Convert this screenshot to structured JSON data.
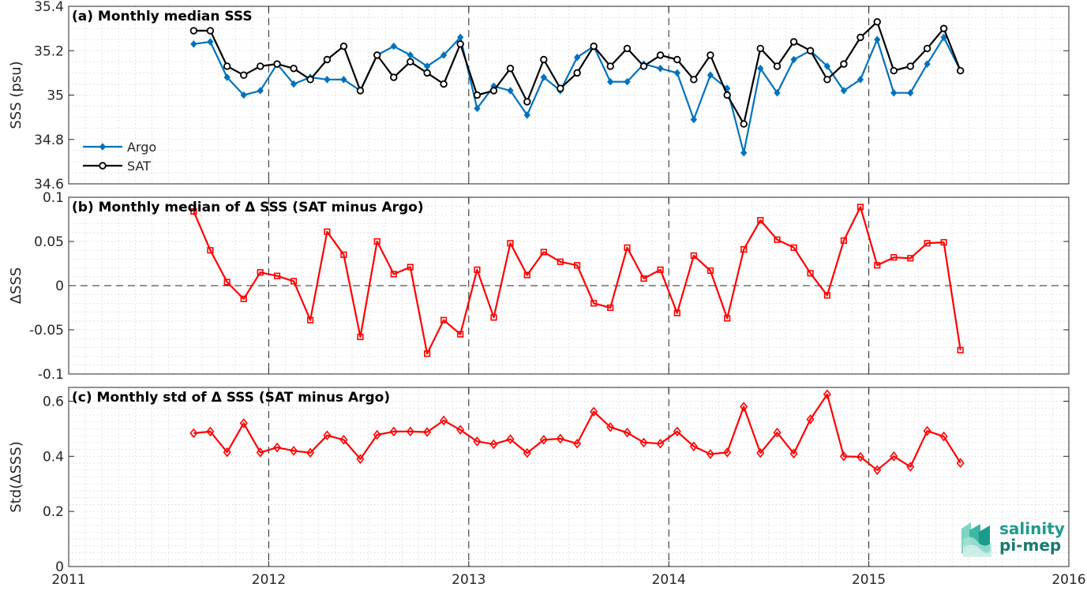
{
  "chart_data": [
    {
      "type": "line",
      "title": "(a) Monthly median SSS",
      "xlabel": "",
      "ylabel": "SSS (psu)",
      "xlim": [
        2011,
        2016
      ],
      "ylim": [
        34.6,
        35.4
      ],
      "xticks": [
        "2011",
        "2012",
        "2013",
        "2014",
        "2015",
        "2016"
      ],
      "yticks": [
        "34.6",
        "34.8",
        "35",
        "35.2",
        "35.4"
      ],
      "grid": "dotted minor grid, dashed year lines",
      "legend": "bottom-left",
      "x": [
        2011.625,
        2011.708,
        2011.792,
        2011.875,
        2011.958,
        2012.042,
        2012.125,
        2012.208,
        2012.292,
        2012.375,
        2012.458,
        2012.542,
        2012.625,
        2012.708,
        2012.792,
        2012.875,
        2012.958,
        2013.042,
        2013.125,
        2013.208,
        2013.292,
        2013.375,
        2013.458,
        2013.542,
        2013.625,
        2013.708,
        2013.792,
        2013.875,
        2013.958,
        2014.042,
        2014.125,
        2014.208,
        2014.292,
        2014.375,
        2014.458,
        2014.542,
        2014.625,
        2014.708,
        2014.792,
        2014.875,
        2014.958,
        2015.042,
        2015.125,
        2015.208,
        2015.292,
        2015.375,
        2015.458
      ],
      "series": [
        {
          "name": "Argo",
          "color": "#0072bd",
          "marker": "diamond",
          "values": [
            35.23,
            35.24,
            35.08,
            35.0,
            35.02,
            35.14,
            35.05,
            35.08,
            35.07,
            35.07,
            35.02,
            35.18,
            35.22,
            35.18,
            35.13,
            35.18,
            35.26,
            34.94,
            35.04,
            35.02,
            34.91,
            35.08,
            35.02,
            35.17,
            35.22,
            35.06,
            35.06,
            35.14,
            35.12,
            35.1,
            34.89,
            35.09,
            35.03,
            34.74,
            35.12,
            35.01,
            35.16,
            35.2,
            35.13,
            35.02,
            35.07,
            35.25,
            35.01,
            35.01,
            35.14,
            35.26,
            35.11
          ]
        },
        {
          "name": "SAT",
          "color": "#000000",
          "marker": "circle",
          "values": [
            35.29,
            35.29,
            35.13,
            35.09,
            35.13,
            35.14,
            35.12,
            35.07,
            35.16,
            35.22,
            35.02,
            35.18,
            35.08,
            35.15,
            35.1,
            35.05,
            35.23,
            35.0,
            35.02,
            35.12,
            34.97,
            35.16,
            35.03,
            35.1,
            35.22,
            35.13,
            35.21,
            35.13,
            35.18,
            35.16,
            35.07,
            35.18,
            35.0,
            34.87,
            35.21,
            35.13,
            35.24,
            35.2,
            35.07,
            35.14,
            35.26,
            35.33,
            35.11,
            35.13,
            35.21,
            35.3,
            35.11
          ]
        }
      ]
    },
    {
      "type": "line",
      "title": "(b) Monthly median of Δ SSS (SAT minus Argo)",
      "xlabel": "",
      "ylabel": "ΔSSS",
      "xlim": [
        2011,
        2016
      ],
      "ylim": [
        -0.1,
        0.1
      ],
      "xticks": [
        "2011",
        "2012",
        "2013",
        "2014",
        "2015",
        "2016"
      ],
      "yticks": [
        "-0.1",
        "-0.05",
        "0",
        "0.05",
        "0.1"
      ],
      "grid": "dotted minor grid, dashed year lines, dashed zero line",
      "legend": "none",
      "x": [
        2011.625,
        2011.708,
        2011.792,
        2011.875,
        2011.958,
        2012.042,
        2012.125,
        2012.208,
        2012.292,
        2012.375,
        2012.458,
        2012.542,
        2012.625,
        2012.708,
        2012.792,
        2012.875,
        2012.958,
        2013.042,
        2013.125,
        2013.208,
        2013.292,
        2013.375,
        2013.458,
        2013.542,
        2013.625,
        2013.708,
        2013.792,
        2013.875,
        2013.958,
        2014.042,
        2014.125,
        2014.208,
        2014.292,
        2014.375,
        2014.458,
        2014.542,
        2014.625,
        2014.708,
        2014.792,
        2014.875,
        2014.958,
        2015.042,
        2015.125,
        2015.208,
        2015.292,
        2015.375,
        2015.458
      ],
      "series": [
        {
          "color": "#ff0000",
          "marker": "square",
          "values": [
            0.084,
            0.04,
            0.004,
            -0.015,
            0.015,
            0.011,
            0.005,
            -0.039,
            0.061,
            0.035,
            -0.058,
            0.05,
            0.013,
            0.021,
            -0.077,
            -0.039,
            -0.055,
            0.018,
            -0.036,
            0.048,
            0.012,
            0.038,
            0.027,
            0.023,
            -0.02,
            -0.025,
            0.043,
            0.008,
            0.018,
            -0.031,
            0.034,
            0.017,
            -0.037,
            0.041,
            0.074,
            0.052,
            0.043,
            0.014,
            -0.011,
            0.051,
            0.089,
            0.023,
            0.032,
            0.031,
            0.048,
            0.049,
            -0.073
          ]
        }
      ]
    },
    {
      "type": "line",
      "title": "(c) Monthly std of Δ SSS (SAT minus Argo)",
      "xlabel": "",
      "ylabel": "Std(ΔSSS)",
      "xlim": [
        2011,
        2016
      ],
      "ylim": [
        0,
        0.65
      ],
      "xticks": [
        "2011",
        "2012",
        "2013",
        "2014",
        "2015",
        "2016"
      ],
      "yticks": [
        "0",
        "0.2",
        "0.4",
        "0.6"
      ],
      "grid": "dotted minor grid, dashed year lines",
      "legend": "none",
      "x": [
        2011.625,
        2011.708,
        2011.792,
        2011.875,
        2011.958,
        2012.042,
        2012.125,
        2012.208,
        2012.292,
        2012.375,
        2012.458,
        2012.542,
        2012.625,
        2012.708,
        2012.792,
        2012.875,
        2012.958,
        2013.042,
        2013.125,
        2013.208,
        2013.292,
        2013.375,
        2013.458,
        2013.542,
        2013.625,
        2013.708,
        2013.792,
        2013.875,
        2013.958,
        2014.042,
        2014.125,
        2014.208,
        2014.292,
        2014.375,
        2014.458,
        2014.542,
        2014.625,
        2014.708,
        2014.792,
        2014.875,
        2014.958,
        2015.042,
        2015.125,
        2015.208,
        2015.292,
        2015.375,
        2015.458
      ],
      "series": [
        {
          "color": "#ff0000",
          "marker": "diamond-open",
          "values": [
            0.484,
            0.49,
            0.415,
            0.52,
            0.414,
            0.432,
            0.42,
            0.413,
            0.476,
            0.46,
            0.39,
            0.478,
            0.49,
            0.49,
            0.488,
            0.53,
            0.496,
            0.454,
            0.444,
            0.462,
            0.412,
            0.46,
            0.464,
            0.446,
            0.562,
            0.506,
            0.486,
            0.45,
            0.446,
            0.49,
            0.436,
            0.408,
            0.414,
            0.58,
            0.412,
            0.486,
            0.41,
            0.534,
            0.625,
            0.4,
            0.398,
            0.35,
            0.4,
            0.362,
            0.492,
            0.472,
            0.376
          ]
        }
      ]
    }
  ],
  "logo": {
    "line1": "salinity",
    "line2": "pi-mep",
    "color": "#1a9c8c"
  }
}
